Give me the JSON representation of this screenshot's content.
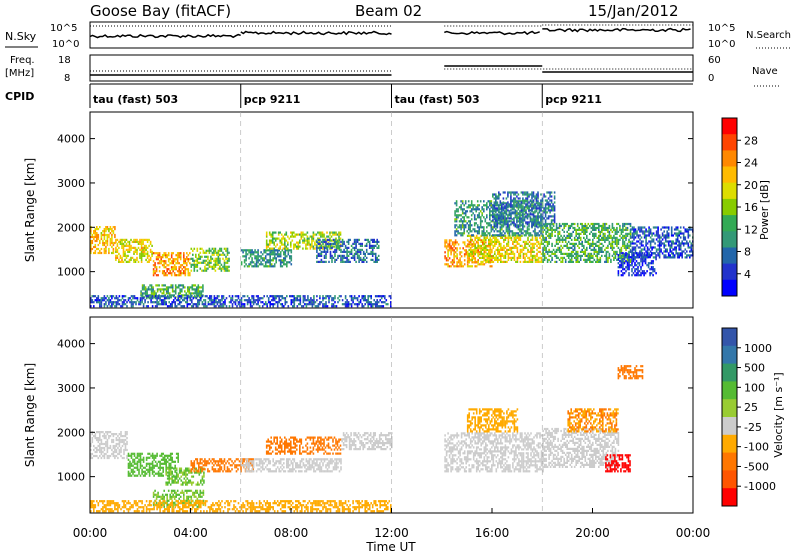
{
  "header": {
    "station": "Goose Bay (fitACF)",
    "beam": "Beam 02",
    "date": "15/Jan/2012"
  },
  "nsky_panel": {
    "left_label": "N.Sky",
    "left_ticks": [
      "10^5",
      "10^0"
    ],
    "right_ticks": [
      "10^5",
      "10^0"
    ],
    "right_label": "N.Search"
  },
  "freq_panel": {
    "left_label_line1": "Freq.",
    "left_label_line2": "[MHz]",
    "left_ticks": [
      "18",
      "8"
    ],
    "right_ticks": [
      "60",
      "0"
    ],
    "right_label": "Nave"
  },
  "cpid_panel": {
    "label": "CPID",
    "segments": [
      {
        "name": "tau (fast) 503",
        "start_h": 0,
        "end_h": 6
      },
      {
        "name": "pcp 9211",
        "start_h": 6,
        "end_h": 12
      },
      {
        "name": "tau (fast) 503",
        "start_h": 12,
        "end_h": 18
      },
      {
        "name": "pcp 9211",
        "start_h": 18,
        "end_h": 24
      }
    ]
  },
  "power_colorbar": {
    "label": "Power [dB]",
    "ticks": [
      "28",
      "24",
      "20",
      "16",
      "12",
      "8",
      "4"
    ],
    "colors": [
      "#ff0000",
      "#ff4400",
      "#ff8800",
      "#ffbb00",
      "#dddd00",
      "#88cc00",
      "#33aa55",
      "#339977",
      "#2266aa",
      "#2233cc",
      "#0000ff"
    ]
  },
  "velocity_colorbar": {
    "label": "Velocity [m s⁻¹]",
    "ticks": [
      "1000",
      "500",
      "100",
      "25",
      "-25",
      "-100",
      "-500",
      "-1000"
    ],
    "colors": [
      "#3355aa",
      "#3377aa",
      "#339966",
      "#55bb33",
      "#99cc33",
      "#cccccc",
      "#ffaa00",
      "#ff7700",
      "#ff5500",
      "#ff0000"
    ]
  },
  "chart_data": [
    {
      "type": "heatmap",
      "title": "Power",
      "ylabel": "Slant Range [km]",
      "xlim": [
        0,
        24
      ],
      "ylim": [
        180,
        4600
      ],
      "yticks": [
        "1000",
        "2000",
        "3000",
        "4000"
      ],
      "yticks_values": [
        1000,
        2000,
        3000,
        4000
      ],
      "gap_hours": [
        12.0,
        14.1
      ],
      "bands": [
        {
          "t0": 0.0,
          "t1": 1.0,
          "r0": 1400,
          "r1": 2000,
          "v": 20
        },
        {
          "t0": 1.0,
          "t1": 2.5,
          "r0": 1200,
          "r1": 1700,
          "v": 18
        },
        {
          "t0": 2.5,
          "t1": 4.0,
          "r0": 900,
          "r1": 1400,
          "v": 22
        },
        {
          "t0": 4.0,
          "t1": 5.5,
          "r0": 1000,
          "r1": 1500,
          "v": 14
        },
        {
          "t0": 2.0,
          "t1": 4.5,
          "r0": 400,
          "r1": 700,
          "v": 12
        },
        {
          "t0": 6.0,
          "t1": 8.0,
          "r0": 1100,
          "r1": 1500,
          "v": 10
        },
        {
          "t0": 7.0,
          "t1": 10.0,
          "r0": 1500,
          "r1": 1900,
          "v": 16
        },
        {
          "t0": 9.0,
          "t1": 11.5,
          "r0": 1200,
          "r1": 1700,
          "v": 8
        },
        {
          "t0": 0.0,
          "t1": 12.0,
          "r0": 200,
          "r1": 450,
          "v": 6
        },
        {
          "t0": 14.1,
          "t1": 16.0,
          "r0": 1100,
          "r1": 1700,
          "v": 22
        },
        {
          "t0": 15.0,
          "t1": 18.0,
          "r0": 1200,
          "r1": 1800,
          "v": 18
        },
        {
          "t0": 14.5,
          "t1": 18.0,
          "r0": 1800,
          "r1": 2600,
          "v": 10
        },
        {
          "t0": 16.0,
          "t1": 18.5,
          "r0": 2000,
          "r1": 2800,
          "v": 8
        },
        {
          "t0": 18.0,
          "t1": 21.5,
          "r0": 1200,
          "r1": 2100,
          "v": 12
        },
        {
          "t0": 21.5,
          "t1": 24.0,
          "r0": 1300,
          "r1": 2000,
          "v": 6
        },
        {
          "t0": 21.0,
          "t1": 22.5,
          "r0": 900,
          "r1": 1400,
          "v": 4
        }
      ]
    },
    {
      "type": "heatmap",
      "title": "Velocity",
      "ylabel": "Slant Range [km]",
      "xlabel": "Time UT",
      "xticks": [
        "00:00",
        "04:00",
        "08:00",
        "12:00",
        "16:00",
        "20:00",
        "00:00"
      ],
      "xticks_values": [
        0,
        4,
        8,
        12,
        16,
        20,
        24
      ],
      "xlim": [
        0,
        24
      ],
      "ylim": [
        180,
        4600
      ],
      "yticks": [
        "1000",
        "2000",
        "3000",
        "4000"
      ],
      "yticks_values": [
        1000,
        2000,
        3000,
        4000
      ],
      "bands": [
        {
          "t0": 0.0,
          "t1": 1.5,
          "r0": 1400,
          "r1": 2000,
          "v": 0
        },
        {
          "t0": 1.5,
          "t1": 3.5,
          "r0": 1000,
          "r1": 1500,
          "v": 80
        },
        {
          "t0": 3.0,
          "t1": 4.5,
          "r0": 800,
          "r1": 1200,
          "v": 60
        },
        {
          "t0": 4.0,
          "t1": 6.5,
          "r0": 1100,
          "r1": 1400,
          "v": -120
        },
        {
          "t0": 2.5,
          "t1": 4.5,
          "r0": 300,
          "r1": 700,
          "v": 60
        },
        {
          "t0": 7.0,
          "t1": 10.0,
          "r0": 1500,
          "r1": 1900,
          "v": -150
        },
        {
          "t0": 6.0,
          "t1": 10.0,
          "r0": 1100,
          "r1": 1400,
          "v": 0
        },
        {
          "t0": 10.0,
          "t1": 12.0,
          "r0": 1600,
          "r1": 2000,
          "v": 0
        },
        {
          "t0": 14.1,
          "t1": 18.0,
          "r0": 1100,
          "r1": 2000,
          "v": 0
        },
        {
          "t0": 15.0,
          "t1": 17.0,
          "r0": 2000,
          "r1": 2500,
          "v": -60
        },
        {
          "t0": 18.0,
          "t1": 21.0,
          "r0": 1200,
          "r1": 2100,
          "v": 0
        },
        {
          "t0": 20.5,
          "t1": 21.5,
          "r0": 1100,
          "r1": 1500,
          "v": -700
        },
        {
          "t0": 21.0,
          "t1": 22.0,
          "r0": 3200,
          "r1": 3500,
          "v": -200
        },
        {
          "t0": 19.0,
          "t1": 21.0,
          "r0": 2000,
          "r1": 2500,
          "v": -100
        },
        {
          "t0": 0.0,
          "t1": 12.0,
          "r0": 200,
          "r1": 450,
          "v": -60
        }
      ]
    }
  ]
}
